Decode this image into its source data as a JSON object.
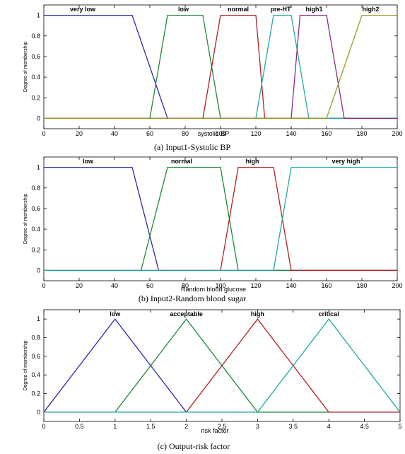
{
  "colors": {
    "blue": "#2a2aa8",
    "green": "#1e8a3a",
    "red": "#b22020",
    "cyan": "#20a8a8",
    "purple": "#8a2a8a",
    "olive": "#9a9a22"
  },
  "chart_data": [
    {
      "type": "line",
      "caption": "(a) Input1-Systolic BP",
      "xlabel": "systolic-BP",
      "ylabel": "Degree of membership",
      "xlim": [
        0,
        200
      ],
      "ylim": [
        0,
        1
      ],
      "xticks": [
        0,
        20,
        40,
        60,
        80,
        100,
        120,
        140,
        160,
        180,
        200
      ],
      "yticks": [
        0,
        0.2,
        0.4,
        0.6,
        0.8,
        1
      ],
      "series": [
        {
          "name": "very low",
          "color": "blue",
          "points": [
            [
              0,
              1
            ],
            [
              50,
              1
            ],
            [
              70,
              0
            ],
            [
              200,
              0
            ]
          ],
          "label_x": 22
        },
        {
          "name": "low",
          "color": "green",
          "points": [
            [
              0,
              0
            ],
            [
              60,
              0
            ],
            [
              70,
              1
            ],
            [
              90,
              1
            ],
            [
              100,
              0
            ],
            [
              200,
              0
            ]
          ],
          "label_x": 79
        },
        {
          "name": "normal",
          "color": "red",
          "points": [
            [
              0,
              0
            ],
            [
              90,
              0
            ],
            [
              100,
              1
            ],
            [
              120,
              1
            ],
            [
              125,
              0
            ],
            [
              200,
              0
            ]
          ],
          "label_x": 110
        },
        {
          "name": "pre-HT",
          "color": "cyan",
          "points": [
            [
              0,
              0
            ],
            [
              120,
              0
            ],
            [
              130,
              1
            ],
            [
              140,
              1
            ],
            [
              150,
              0
            ],
            [
              200,
              0
            ]
          ],
          "label_x": 134
        },
        {
          "name": "high1",
          "color": "purple",
          "points": [
            [
              0,
              0
            ],
            [
              140,
              0
            ],
            [
              145,
              1
            ],
            [
              160,
              1
            ],
            [
              170,
              0
            ],
            [
              200,
              0
            ]
          ],
          "label_x": 153
        },
        {
          "name": "high2",
          "color": "olive",
          "points": [
            [
              0,
              0
            ],
            [
              160,
              0
            ],
            [
              180,
              1
            ],
            [
              200,
              1
            ]
          ],
          "label_x": 185
        }
      ]
    },
    {
      "type": "line",
      "caption": "(b) Input2-Random blood sugar",
      "xlabel": "Random blood glucose",
      "ylabel": "Degree of membership",
      "xlim": [
        0,
        200
      ],
      "ylim": [
        0,
        1
      ],
      "xticks": [
        0,
        20,
        40,
        60,
        80,
        100,
        120,
        140,
        160,
        180,
        200
      ],
      "yticks": [
        0,
        0.2,
        0.4,
        0.6,
        0.8,
        1
      ],
      "series": [
        {
          "name": "low",
          "color": "blue",
          "points": [
            [
              0,
              1
            ],
            [
              50,
              1
            ],
            [
              65,
              0
            ],
            [
              200,
              0
            ]
          ],
          "label_x": 25
        },
        {
          "name": "normal",
          "color": "green",
          "points": [
            [
              0,
              0
            ],
            [
              55,
              0
            ],
            [
              70,
              1
            ],
            [
              100,
              1
            ],
            [
              110,
              0
            ],
            [
              200,
              0
            ]
          ],
          "label_x": 78
        },
        {
          "name": "high",
          "color": "red",
          "points": [
            [
              0,
              0
            ],
            [
              100,
              0
            ],
            [
              110,
              1
            ],
            [
              130,
              1
            ],
            [
              140,
              0
            ],
            [
              200,
              0
            ]
          ],
          "label_x": 118
        },
        {
          "name": "very high",
          "color": "cyan",
          "points": [
            [
              0,
              0
            ],
            [
              130,
              0
            ],
            [
              140,
              1
            ],
            [
              200,
              1
            ]
          ],
          "label_x": 171
        }
      ]
    },
    {
      "type": "line",
      "caption": "(c) Output-risk factor",
      "xlabel": "risk factor",
      "ylabel": "Degree of membership",
      "xlim": [
        0,
        5
      ],
      "ylim": [
        0,
        1
      ],
      "xticks": [
        0,
        0.5,
        1,
        1.5,
        2,
        2.5,
        3,
        3.5,
        4,
        4.5,
        5
      ],
      "yticks": [
        0,
        0.2,
        0.4,
        0.6,
        0.8,
        1
      ],
      "series": [
        {
          "name": "low",
          "color": "blue",
          "points": [
            [
              0,
              0
            ],
            [
              1,
              1
            ],
            [
              2,
              0
            ],
            [
              5,
              0
            ]
          ],
          "label_x": 1
        },
        {
          "name": "acceptable",
          "color": "green",
          "points": [
            [
              0,
              0
            ],
            [
              1,
              0
            ],
            [
              2,
              1
            ],
            [
              3,
              0
            ],
            [
              5,
              0
            ]
          ],
          "label_x": 2
        },
        {
          "name": "high",
          "color": "red",
          "points": [
            [
              0,
              0
            ],
            [
              2,
              0
            ],
            [
              3,
              1
            ],
            [
              4,
              0
            ],
            [
              5,
              0
            ]
          ],
          "label_x": 3
        },
        {
          "name": "critical",
          "color": "cyan",
          "points": [
            [
              0,
              0
            ],
            [
              3,
              0
            ],
            [
              4,
              1
            ],
            [
              5,
              0
            ]
          ],
          "label_x": 4
        }
      ]
    }
  ]
}
